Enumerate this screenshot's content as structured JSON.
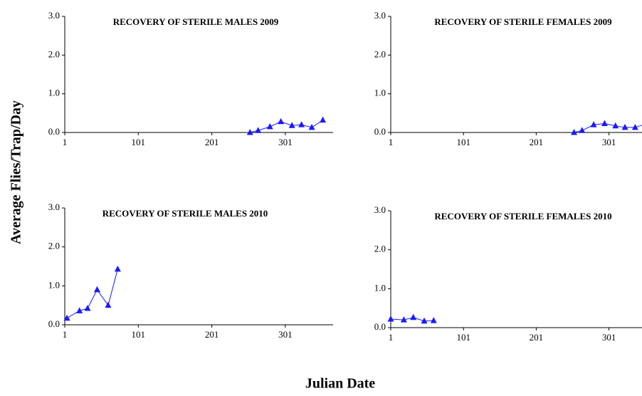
{
  "ylabel": "Average Flies/Trap/Day",
  "xlabel": "Julian Date",
  "chart_data": [
    {
      "type": "line",
      "title": "RECOVERY OF STERILE MALES 2009",
      "x": [
        253,
        264,
        280,
        295,
        310,
        323,
        337,
        352
      ],
      "series": [
        {
          "name": "Males 2009",
          "color": "#1a1aff",
          "values": [
            0.0,
            0.05,
            0.15,
            0.28,
            0.18,
            0.2,
            0.13,
            0.32
          ]
        }
      ],
      "xlim": [
        1,
        366
      ],
      "xticks": [
        1,
        101,
        201,
        301
      ],
      "ylim": [
        0,
        3
      ],
      "yticks": [
        {
          "value": 0,
          "label": "0.0"
        },
        {
          "value": 1,
          "label": "1.0"
        },
        {
          "value": 2,
          "label": "2.0"
        },
        {
          "value": 3,
          "label": "3.0"
        }
      ]
    },
    {
      "type": "line",
      "title": "RECOVERY OF STERILE FEMALES 2009",
      "x": [
        253,
        264,
        280,
        295,
        310,
        323,
        337,
        352
      ],
      "series": [
        {
          "name": "Females 2009",
          "color": "#1a1aff",
          "values": [
            0.0,
            0.05,
            0.2,
            0.23,
            0.17,
            0.13,
            0.13,
            0.22
          ]
        }
      ],
      "xlim": [
        1,
        366
      ],
      "xticks": [
        1,
        101,
        201,
        301
      ],
      "ylim": [
        0,
        3
      ],
      "yticks": [
        {
          "value": 0,
          "label": "0.0"
        },
        {
          "value": 1,
          "label": "1.0"
        },
        {
          "value": 2,
          "label": "2.0"
        },
        {
          "value": 3,
          "label": "3.0"
        }
      ]
    },
    {
      "type": "line",
      "title": "RECOVERY OF STERILE MALES 2010",
      "x": [
        4,
        21,
        32,
        45,
        60,
        73
      ],
      "series": [
        {
          "name": "Males 2010",
          "color": "#1a1aff",
          "values": [
            0.17,
            0.36,
            0.42,
            0.9,
            0.5,
            1.43
          ]
        }
      ],
      "xlim": [
        1,
        366
      ],
      "xticks": [
        1,
        101,
        201,
        301
      ],
      "ylim": [
        0,
        3
      ],
      "yticks": [
        {
          "value": 0,
          "label": "0.0"
        },
        {
          "value": 1,
          "label": "1.0"
        },
        {
          "value": 2,
          "label": "2.0"
        },
        {
          "value": 3,
          "label": "3.0"
        }
      ]
    },
    {
      "type": "line",
      "title": "RECOVERY OF STERILE FEMALES 2010",
      "x": [
        1,
        19,
        32,
        47,
        60
      ],
      "series": [
        {
          "name": "Females 2010",
          "color": "#1a1aff",
          "values": [
            0.22,
            0.2,
            0.26,
            0.17,
            0.18
          ]
        }
      ],
      "xlim": [
        1,
        366
      ],
      "xticks": [
        1,
        101,
        201,
        301
      ],
      "ylim": [
        0,
        3
      ],
      "yticks": [
        {
          "value": 0,
          "label": "0.0"
        },
        {
          "value": 1,
          "label": "1.0"
        },
        {
          "value": 2,
          "label": "2.0"
        },
        {
          "value": 3,
          "label": "3.0"
        }
      ]
    }
  ]
}
